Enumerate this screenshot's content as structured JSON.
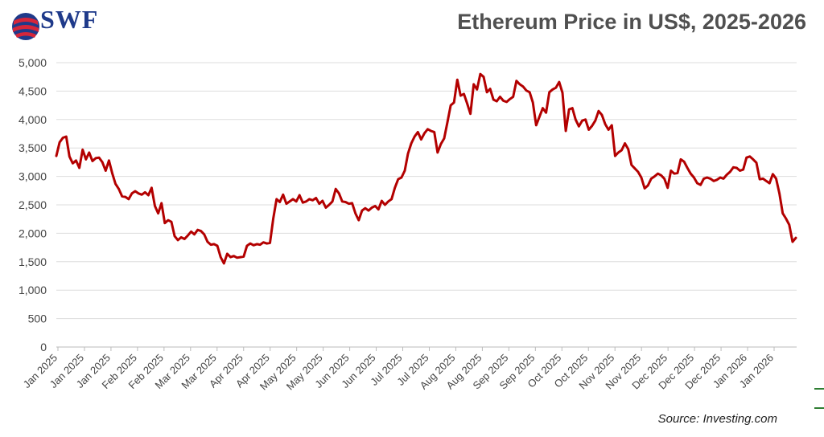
{
  "header": {
    "logo_text": "SWF",
    "title": "Ethereum Price in US$, 2025-2026"
  },
  "footer": {
    "source": "Source: Investing.com"
  },
  "colors": {
    "line": "#b30000",
    "grid": "#dddddd",
    "logo": "#1f3a8a",
    "logo_swoosh": "#d6263a",
    "title": "#505050",
    "legend_accent": "#2e7d32"
  },
  "chart_data": {
    "type": "line",
    "title": "Ethereum Price in US$, 2025-2026",
    "xlabel": "",
    "ylabel": "",
    "ylim": [
      0,
      5000
    ],
    "yticks": [
      0,
      500,
      1000,
      1500,
      2000,
      2500,
      3000,
      3500,
      4000,
      4500,
      5000
    ],
    "ytick_labels": [
      "0",
      "500",
      "1,000",
      "1,500",
      "2,000",
      "2,500",
      "3,000",
      "3,500",
      "4,000",
      "4,500",
      "5,000"
    ],
    "xtick_labels": [
      "Jan 2025",
      "Jan 2025",
      "Jan 2025",
      "Feb 2025",
      "Feb 2025",
      "Mar 2025",
      "Mar 2025",
      "Apr 2025",
      "Apr 2025",
      "May 2025",
      "May 2025",
      "Jun 2025",
      "Jun 2025",
      "Jul 2025",
      "Jul 2025",
      "Aug 2025",
      "Aug 2025",
      "Sep 2025",
      "Sep 2025",
      "Oct 2025",
      "Oct 2025",
      "Nov 2025",
      "Nov 2025",
      "Dec 2025",
      "Dec 2025",
      "Dec 2025",
      "Jan 2026",
      "Jan 2026"
    ],
    "grid": true,
    "series": [
      {
        "values": [
          3360,
          3600,
          3680,
          3700,
          3350,
          3230,
          3280,
          3150,
          3470,
          3300,
          3420,
          3270,
          3320,
          3330,
          3250,
          3100,
          3280,
          3060,
          2870,
          2780,
          2650,
          2640,
          2600,
          2700,
          2740,
          2700,
          2680,
          2720,
          2670,
          2800,
          2480,
          2350,
          2530,
          2180,
          2230,
          2200,
          1950,
          1880,
          1930,
          1900,
          1960,
          2030,
          1980,
          2060,
          2040,
          1980,
          1850,
          1800,
          1810,
          1780,
          1580,
          1470,
          1640,
          1580,
          1600,
          1570,
          1580,
          1590,
          1780,
          1820,
          1790,
          1810,
          1800,
          1840,
          1820,
          1830,
          2260,
          2600,
          2550,
          2680,
          2520,
          2560,
          2600,
          2560,
          2670,
          2540,
          2560,
          2600,
          2580,
          2620,
          2520,
          2570,
          2450,
          2500,
          2560,
          2780,
          2700,
          2560,
          2550,
          2520,
          2530,
          2350,
          2230,
          2400,
          2440,
          2400,
          2450,
          2480,
          2420,
          2570,
          2500,
          2560,
          2600,
          2800,
          2950,
          2980,
          3100,
          3400,
          3580,
          3700,
          3780,
          3650,
          3760,
          3830,
          3800,
          3780,
          3420,
          3570,
          3670,
          3950,
          4250,
          4300,
          4700,
          4420,
          4450,
          4280,
          4100,
          4620,
          4530,
          4800,
          4750,
          4480,
          4540,
          4350,
          4320,
          4400,
          4330,
          4310,
          4360,
          4400,
          4680,
          4620,
          4580,
          4510,
          4480,
          4300,
          3900,
          4050,
          4200,
          4120,
          4480,
          4530,
          4560,
          4660,
          4470,
          3800,
          4180,
          4200,
          4000,
          3880,
          3980,
          4000,
          3820,
          3890,
          3980,
          4150,
          4080,
          3920,
          3820,
          3900,
          3360,
          3420,
          3460,
          3580,
          3480,
          3200,
          3140,
          3080,
          2980,
          2790,
          2840,
          2960,
          3000,
          3050,
          3020,
          2960,
          2800,
          3100,
          3050,
          3060,
          3300,
          3260,
          3150,
          3050,
          2980,
          2880,
          2850,
          2960,
          2980,
          2960,
          2920,
          2940,
          2980,
          2960,
          3030,
          3080,
          3160,
          3150,
          3100,
          3120,
          3330,
          3350,
          3300,
          3240,
          2950,
          2960,
          2920,
          2880,
          3040,
          2960,
          2700,
          2350,
          2260,
          2150,
          1850,
          1920
        ]
      }
    ]
  }
}
